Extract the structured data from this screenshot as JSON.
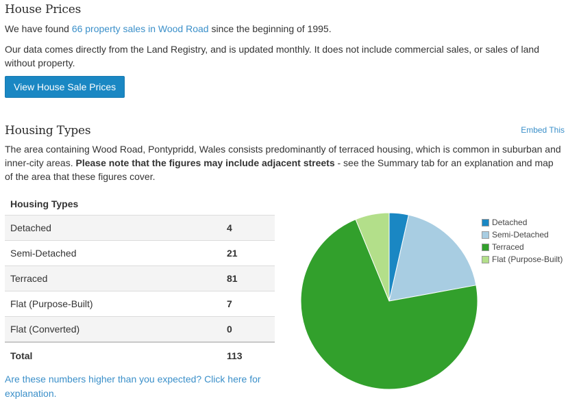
{
  "house_prices": {
    "title": "House Prices",
    "intro_before": "We have found ",
    "intro_link": "66 property sales in Wood Road",
    "intro_after": " since the beginning of 1995.",
    "note": "Our data comes directly from the Land Registry, and is updated monthly. It does not include commercial sales, or sales of land without property.",
    "button_label": "View House Sale Prices"
  },
  "housing_types": {
    "title": "Housing Types",
    "embed_label": "Embed This",
    "desc_start": "The area containing Wood Road, Pontypridd, Wales consists predominantly of terraced housing, which is common in suburban and inner-city areas. ",
    "desc_bold": "Please note that the figures may include adjacent streets",
    "desc_end": " - see the Summary tab for an explanation and map of the area that these figures cover.",
    "table_header": "Housing Types",
    "rows": [
      {
        "label": "Detached",
        "value": "4"
      },
      {
        "label": "Semi-Detached",
        "value": "21"
      },
      {
        "label": "Terraced",
        "value": "81"
      },
      {
        "label": "Flat (Purpose-Built)",
        "value": "7"
      },
      {
        "label": "Flat (Converted)",
        "value": "0"
      }
    ],
    "total_label": "Total",
    "total_value": "113",
    "explanation_link": "Are these numbers higher than you expected? Click here for explanation."
  },
  "chart_data": {
    "type": "pie",
    "categories": [
      "Detached",
      "Semi-Detached",
      "Terraced",
      "Flat (Purpose-Built)"
    ],
    "values": [
      4,
      21,
      81,
      7
    ],
    "colors": [
      "#1a87c3",
      "#a8cde2",
      "#32a02c",
      "#b3df8a"
    ],
    "legend_position": "right"
  }
}
